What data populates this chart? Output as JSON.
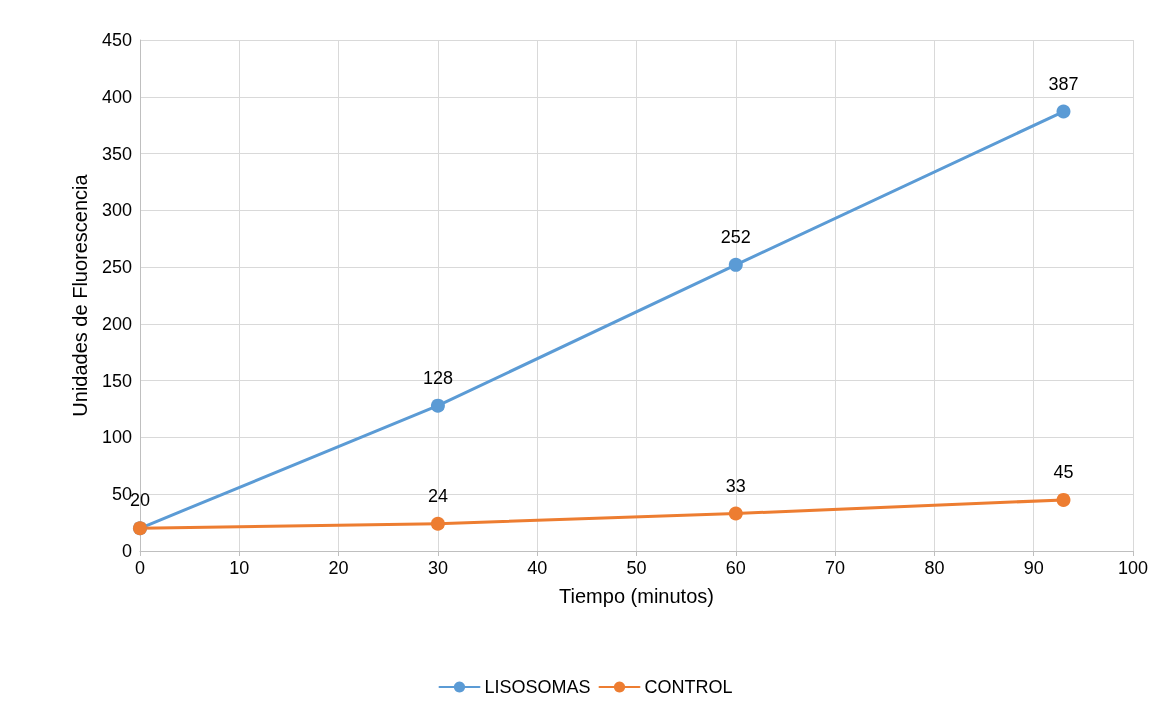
{
  "chart_data": {
    "type": "line",
    "xlabel": "Tiempo (minutos)",
    "ylabel": "Unidades de Fluorescencia",
    "x": [
      0,
      30,
      60,
      93
    ],
    "series": [
      {
        "name": "LISOSOMAS",
        "color": "#5b9bd5",
        "values": [
          20,
          128,
          252,
          387
        ],
        "value_labels": [
          "20",
          "128",
          "252",
          "387"
        ]
      },
      {
        "name": "CONTROL",
        "color": "#ed7d31",
        "values": [
          20,
          24,
          33,
          45
        ],
        "value_labels": [
          null,
          "24",
          "33",
          "45"
        ]
      }
    ],
    "xlim": [
      0,
      100
    ],
    "xticks": [
      0,
      10,
      20,
      30,
      40,
      50,
      60,
      70,
      80,
      90,
      100
    ],
    "ylim": [
      0,
      450
    ],
    "yticks": [
      0,
      50,
      100,
      150,
      200,
      250,
      300,
      350,
      400,
      450
    ],
    "grid": true,
    "legend": "bottom",
    "marker": "circle",
    "line_style": "solid"
  }
}
